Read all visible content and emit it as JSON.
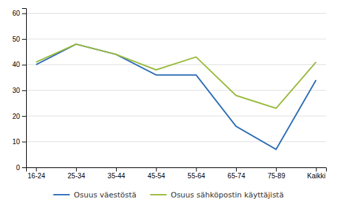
{
  "chart_data": {
    "type": "line",
    "categories": [
      "16-24",
      "25-34",
      "35-44",
      "45-54",
      "55-64",
      "65-74",
      "75-89",
      "Kaikki"
    ],
    "series": [
      {
        "name": "Osuus väestöstä",
        "color": "#2e6db4",
        "values": [
          40,
          48,
          44,
          36,
          36,
          16,
          7,
          34
        ]
      },
      {
        "name": "Osuus sähköpostin käyttäjistä",
        "color": "#99ba3c",
        "values": [
          41,
          48,
          44,
          38,
          43,
          28,
          23,
          41
        ]
      }
    ],
    "ylim": [
      0,
      62
    ],
    "yticks": [
      0,
      10,
      20,
      30,
      40,
      50,
      60
    ],
    "grid": true,
    "legend": "bottom"
  }
}
